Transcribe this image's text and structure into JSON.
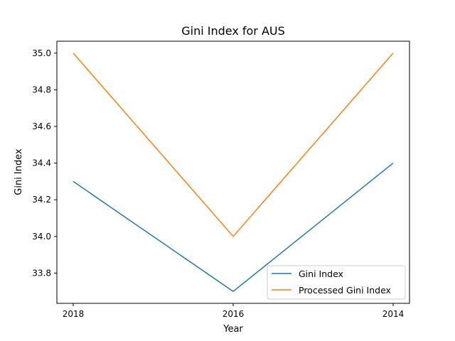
{
  "chart_data": {
    "type": "line",
    "title": "Gini Index for AUS",
    "xlabel": "Year",
    "ylabel": "Gini Index",
    "categories": [
      "2018",
      "2016",
      "2014"
    ],
    "series": [
      {
        "name": "Gini Index",
        "values": [
          34.3,
          33.7,
          34.4
        ],
        "color": "#1f77b4"
      },
      {
        "name": "Processed Gini Index",
        "values": [
          35.0,
          34.0,
          35.0
        ],
        "color": "#ff7f0e"
      }
    ],
    "yticks": [
      33.8,
      34.0,
      34.2,
      34.4,
      34.6,
      34.8,
      35.0
    ],
    "ylim": [
      33.635,
      35.065
    ],
    "grid": false,
    "legend_position": "lower-right"
  }
}
